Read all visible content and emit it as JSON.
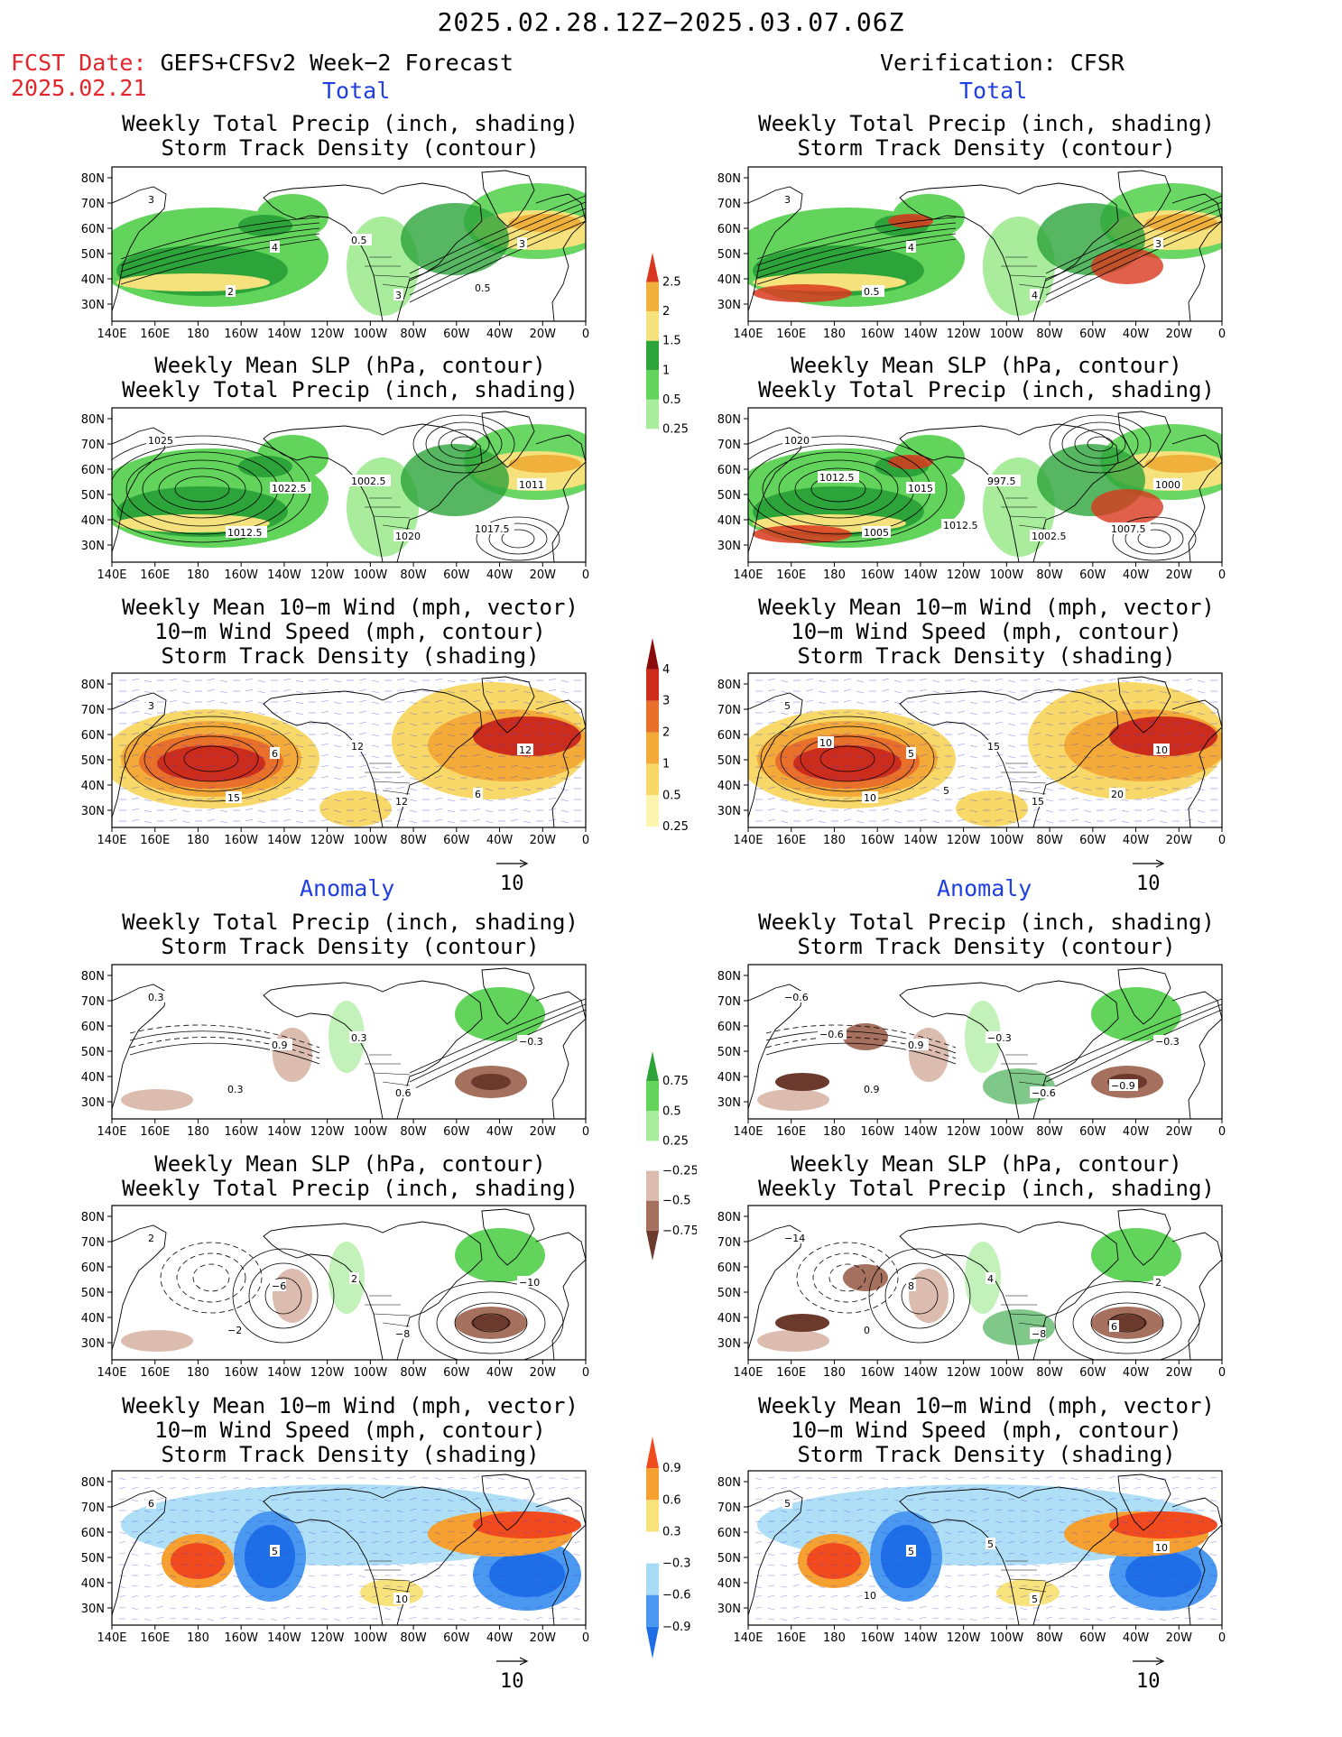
{
  "header": {
    "time_range": "2025.02.28.12Z−2025.03.07.06Z",
    "fcst_label": "FCST Date:",
    "fcst_source": "GEFS+CFSv2 Week−2 Forecast",
    "fcst_date": "2025.02.21",
    "verification": "Verification: CFSR"
  },
  "sections": {
    "total": "Total",
    "anomaly": "Anomaly"
  },
  "titles": {
    "precip_storm": [
      "Weekly Total Precip (inch, shading)",
      "Storm Track Density (contour)"
    ],
    "slp_precip": [
      "Weekly Mean SLP (hPa, contour)",
      "Weekly Total Precip (inch, shading)"
    ],
    "wind_storm": [
      "Weekly Mean 10−m Wind (mph, vector)",
      "10−m Wind Speed (mph, contour)",
      "Storm Track Density (shading)"
    ]
  },
  "axes": {
    "lon": [
      "140E",
      "160E",
      "180",
      "160W",
      "140W",
      "120W",
      "100W",
      "80W",
      "60W",
      "40W",
      "20W",
      "0"
    ],
    "lat": [
      "80N",
      "70N",
      "60N",
      "50N",
      "40N",
      "30N"
    ]
  },
  "vector_ref": "10",
  "colorbars": {
    "precip_total": {
      "labels": [
        "2.5",
        "2",
        "1.5",
        "1",
        "0.5",
        "0.25"
      ],
      "colors": [
        "#ffffff",
        "#a8ec9c",
        "#62d45c",
        "#2ca43a",
        "#f5e27c",
        "#f0b03c",
        "#d9381e"
      ]
    },
    "storm_total": {
      "labels": [
        "4",
        "3",
        "2",
        "1",
        "0.5",
        "0.25"
      ],
      "colors": [
        "#ffffff",
        "#fdf4b0",
        "#f8d868",
        "#f4aa38",
        "#e8702a",
        "#cc2c1c",
        "#8c0c0c"
      ]
    },
    "precip_anom": {
      "labels": [
        "0.75",
        "0.5",
        "0.25",
        "−0.25",
        "−0.5",
        "−0.75"
      ],
      "colors": [
        "#6b3a2c",
        "#a6705e",
        "#dcbcaf",
        "#ffffff",
        "#a8ec9c",
        "#62d45c",
        "#2ca43a"
      ]
    },
    "storm_anom": {
      "labels": [
        "0.9",
        "0.6",
        "0.3",
        "−0.3",
        "−0.6",
        "−0.9"
      ],
      "colors": [
        "#1e6ee8",
        "#4a98f0",
        "#a6dcf6",
        "#ffffff",
        "#f8e27c",
        "#f5a030",
        "#f04a1e"
      ]
    }
  },
  "panel_labels": {
    "l1": [
      "3",
      "4",
      "3",
      "3",
      "2",
      "0.5",
      "0.5"
    ],
    "r1": [
      "3",
      "4",
      "4",
      "3",
      "0.5"
    ],
    "l2": [
      "1025",
      "1022.5",
      "1020",
      "1011",
      "1012.5",
      "1002.5",
      "1017.5"
    ],
    "r2": [
      "1020",
      "1015",
      "1002.5",
      "1000",
      "1005",
      "997.5",
      "1007.5",
      "1012.5",
      "1012.5"
    ],
    "l3": [
      "3",
      "6",
      "12",
      "12",
      "15",
      "12",
      "6"
    ],
    "r3": [
      "5",
      "5",
      "15",
      "10",
      "10",
      "15",
      "20",
      "10",
      "5"
    ],
    "l4": [
      "0.3",
      "0.9",
      "0.6",
      "−0.3",
      "0.3",
      "0.3"
    ],
    "r4": [
      "−0.6",
      "0.9",
      "−0.6",
      "−0.3",
      "0.9",
      "−0.3",
      "−0.9",
      "−0.6"
    ],
    "l5": [
      "2",
      "−6",
      "−8",
      "−10",
      "−2",
      "2"
    ],
    "r5": [
      "−14",
      "8",
      "−8",
      "2",
      "0",
      "4",
      "6"
    ],
    "l6": [
      "6",
      "5",
      "10"
    ],
    "r6": [
      "5",
      "5",
      "5",
      "10",
      "10",
      "5"
    ]
  }
}
